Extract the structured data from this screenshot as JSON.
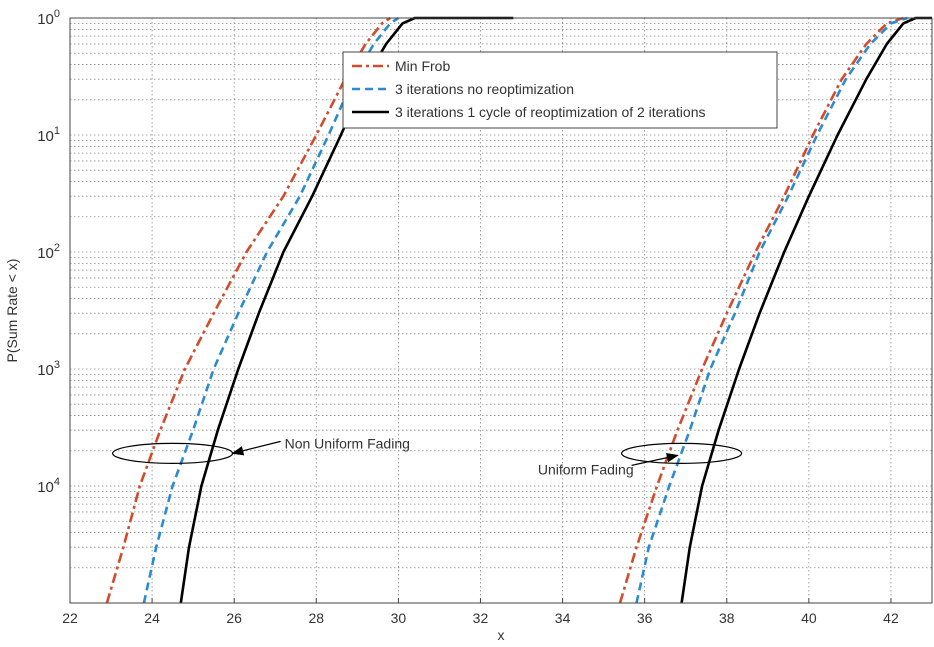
{
  "chart_data": {
    "type": "line",
    "xlabel": "x",
    "ylabel": "P(Sum Rate < x)",
    "xlim": [
      22,
      43
    ],
    "ylim": [
      1e-05,
      1
    ],
    "yscale": "log",
    "grid": true,
    "xticks": [
      22,
      24,
      26,
      28,
      30,
      32,
      34,
      36,
      38,
      40,
      42
    ],
    "yticks": [
      {
        "base": "10",
        "exp": "0",
        "value": 1
      },
      {
        "base": "10",
        "exp": "1",
        "value": 0.1
      },
      {
        "base": "10",
        "exp": "2",
        "value": 0.01
      },
      {
        "base": "10",
        "exp": "3",
        "value": 0.001
      },
      {
        "base": "10",
        "exp": "4",
        "value": 0.0001
      }
    ],
    "legend": {
      "placement": "top-center",
      "entries": [
        {
          "label": "Min Frob",
          "color": "#d44a2a",
          "style": "dashdot"
        },
        {
          "label": "3 iterations no reoptimization",
          "color": "#2a8bd0",
          "style": "dashed"
        },
        {
          "label": "3 iterations 1 cycle of reoptimization of 2 iterations",
          "color": "#000000",
          "style": "solid"
        }
      ]
    },
    "series": [
      {
        "label_ref": 0,
        "scenario": 0,
        "x": [
          22.9,
          23.3,
          23.7,
          24.2,
          24.8,
          25.5,
          26.3,
          27.2,
          28.0,
          28.7,
          29.2,
          29.6,
          29.8
        ],
        "y": [
          1e-05,
          3e-05,
          0.0001,
          0.0003,
          0.001,
          0.003,
          0.01,
          0.03,
          0.1,
          0.3,
          0.6,
          0.9,
          1.0
        ]
      },
      {
        "label_ref": 1,
        "scenario": 0,
        "x": [
          23.8,
          24.1,
          24.5,
          25.0,
          25.5,
          26.1,
          26.8,
          27.6,
          28.3,
          28.9,
          29.4,
          29.8,
          30.0
        ],
        "y": [
          1e-05,
          3e-05,
          0.0001,
          0.0003,
          0.001,
          0.003,
          0.01,
          0.03,
          0.1,
          0.3,
          0.6,
          0.9,
          1.0
        ]
      },
      {
        "label_ref": 2,
        "scenario": 0,
        "x": [
          24.7,
          24.9,
          25.2,
          25.6,
          26.1,
          26.6,
          27.2,
          27.9,
          28.6,
          29.2,
          29.7,
          30.1,
          30.4,
          32.8
        ],
        "y": [
          1e-05,
          3e-05,
          0.0001,
          0.0003,
          0.001,
          0.003,
          0.01,
          0.03,
          0.1,
          0.3,
          0.6,
          0.9,
          1.0,
          1.0
        ]
      },
      {
        "label_ref": 0,
        "scenario": 1,
        "x": [
          35.4,
          35.8,
          36.3,
          36.8,
          37.4,
          38.0,
          38.7,
          39.4,
          40.1,
          40.8,
          41.4,
          41.9,
          42.3
        ],
        "y": [
          1e-05,
          3e-05,
          0.0001,
          0.0003,
          0.001,
          0.003,
          0.01,
          0.03,
          0.1,
          0.3,
          0.6,
          0.9,
          1.0
        ]
      },
      {
        "label_ref": 1,
        "scenario": 1,
        "x": [
          35.8,
          36.1,
          36.6,
          37.1,
          37.6,
          38.2,
          38.8,
          39.5,
          40.2,
          40.9,
          41.5,
          42.0,
          42.4
        ],
        "y": [
          1e-05,
          3e-05,
          0.0001,
          0.0003,
          0.001,
          0.003,
          0.01,
          0.03,
          0.1,
          0.3,
          0.6,
          0.9,
          1.0
        ]
      },
      {
        "label_ref": 2,
        "scenario": 1,
        "x": [
          36.9,
          37.1,
          37.4,
          37.8,
          38.3,
          38.8,
          39.4,
          40.0,
          40.7,
          41.4,
          41.9,
          42.3,
          42.6,
          43.0
        ],
        "y": [
          1e-05,
          3e-05,
          0.0001,
          0.0003,
          0.001,
          0.003,
          0.01,
          0.03,
          0.1,
          0.3,
          0.6,
          0.9,
          1.0,
          1.0
        ]
      }
    ],
    "annotations": [
      {
        "text": "Non  Uniform Fading",
        "ellipse_center": [
          24.5,
          0.00019
        ],
        "arrow_to": "ellipse"
      },
      {
        "text": "Uniform Fading",
        "ellipse_center": [
          36.9,
          0.00019
        ],
        "arrow_to": "ellipse"
      }
    ]
  }
}
